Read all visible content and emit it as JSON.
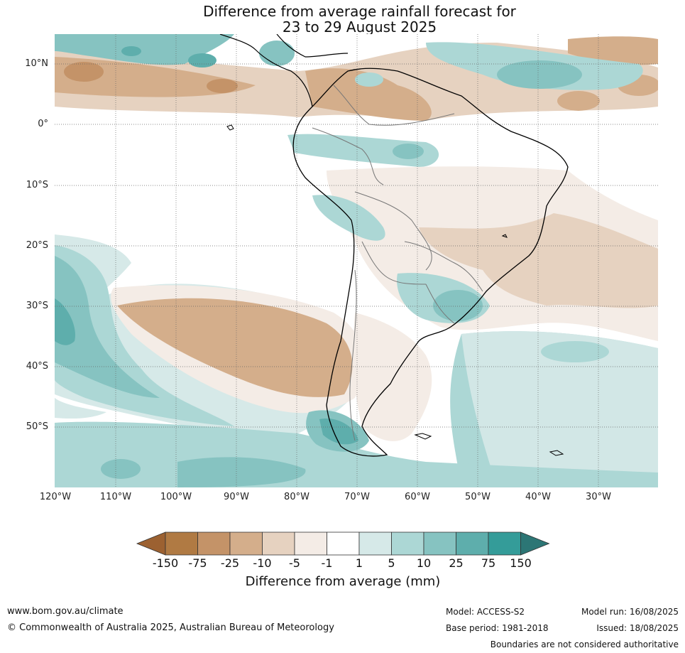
{
  "title": {
    "line1": "Difference from average rainfall forecast for",
    "line2": "23 to 29 August 2025"
  },
  "map": {
    "region": "South America",
    "lat_labels": [
      "10°N",
      "0°",
      "10°S",
      "20°S",
      "30°S",
      "40°S",
      "50°S"
    ],
    "lon_labels": [
      "120°W",
      "110°W",
      "100°W",
      "90°W",
      "80°W",
      "70°W",
      "60°W",
      "50°W",
      "40°W",
      "30°W"
    ]
  },
  "legend": {
    "label": "Difference from average (mm)",
    "ticks": [
      "-150",
      "-75",
      "-25",
      "-10",
      "-5",
      "-1",
      "1",
      "5",
      "10",
      "25",
      "75",
      "150"
    ],
    "colors": [
      "#9c6131",
      "#b07a43",
      "#c49368",
      "#d4ae8b",
      "#e6d2c0",
      "#f4ece6",
      "#ffffff",
      "#d6e9e8",
      "#acd7d5",
      "#86c3c1",
      "#5eaeac",
      "#349c99",
      "#2c7675"
    ]
  },
  "footer": {
    "website": "www.bom.gov.au/climate",
    "copyright": "© Commonwealth of Australia 2025, Australian Bureau of Meteorology",
    "model": "Model: ACCESS-S2",
    "base_period": "Base period: 1981-2018",
    "model_run": "Model run: 16/08/2025",
    "issued": "Issued: 18/08/2025",
    "disclaimer": "Boundaries are not considered authoritative"
  }
}
